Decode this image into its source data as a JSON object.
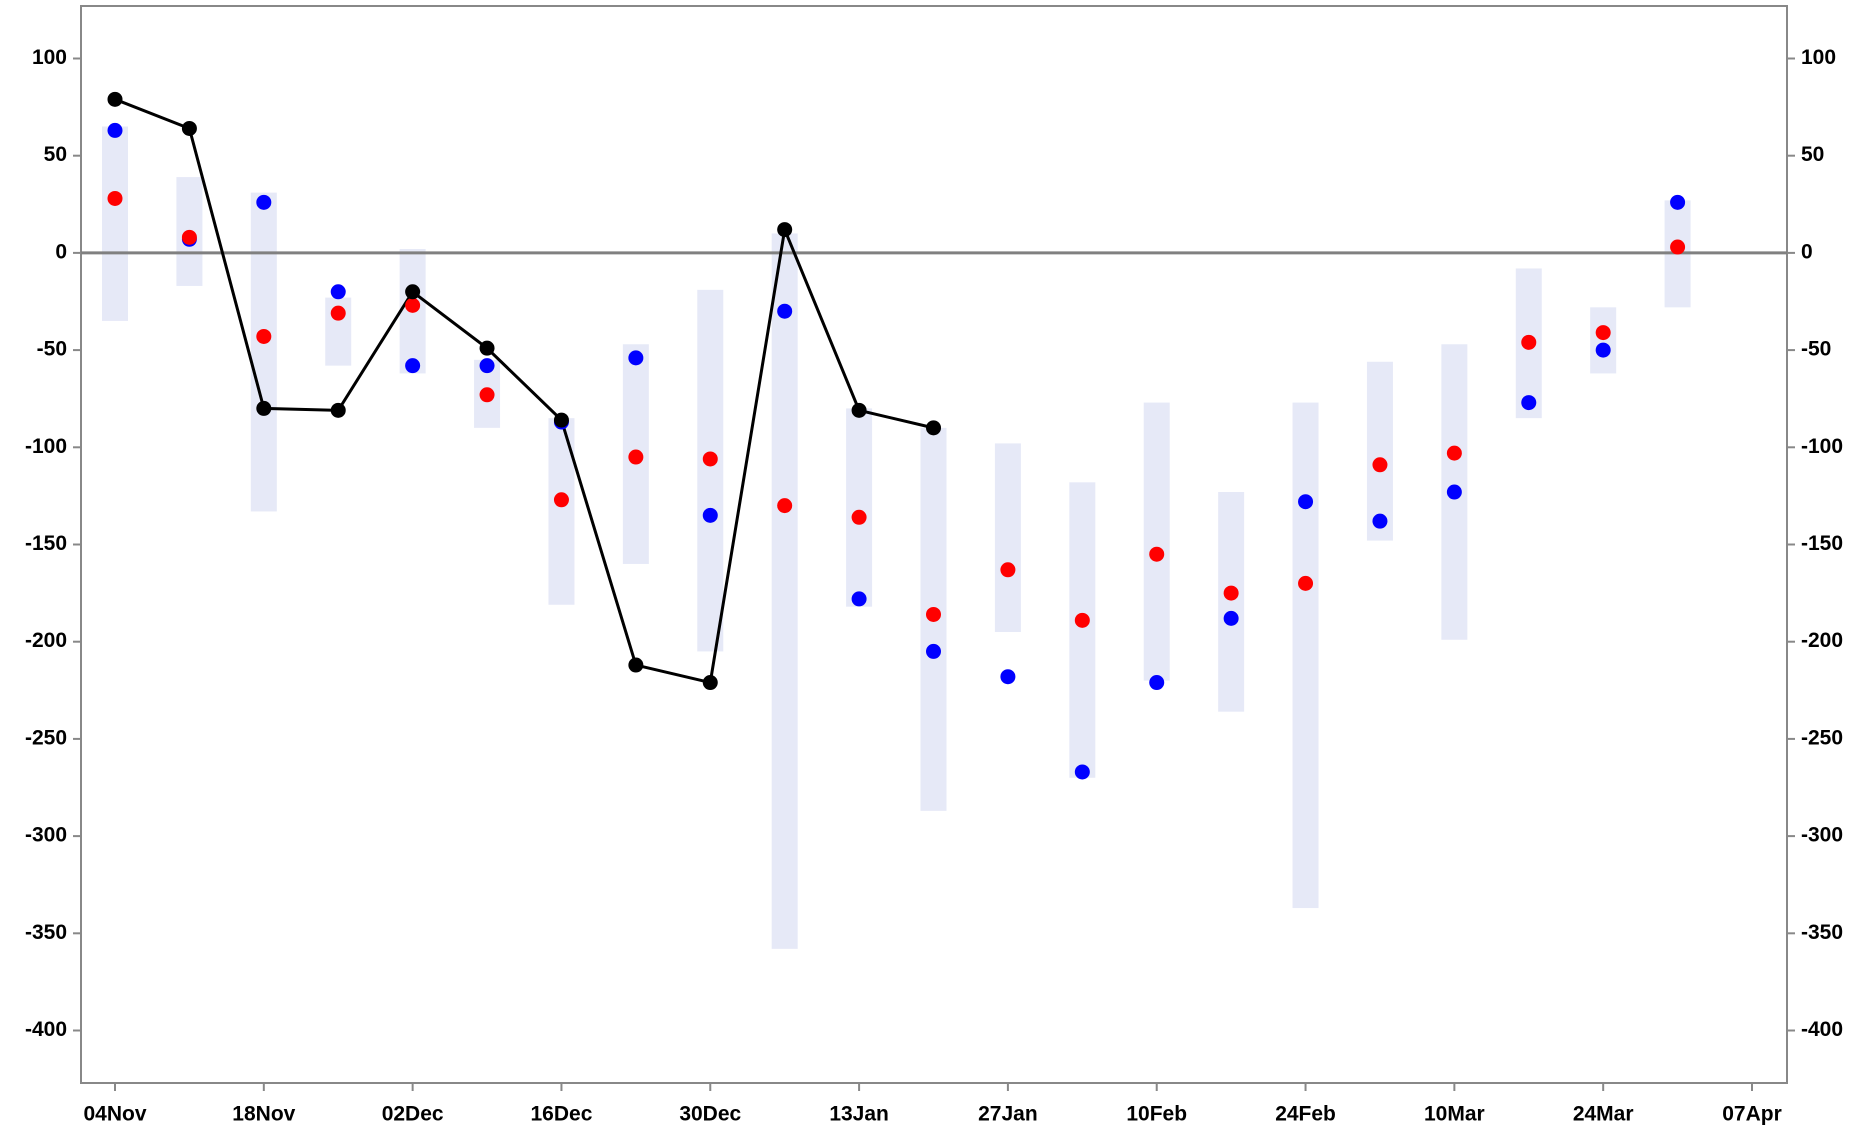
{
  "chart_data": {
    "type": "range-dot",
    "categories": [
      "04Nov",
      null,
      "18Nov",
      null,
      "02Dec",
      null,
      "16Dec",
      null,
      "30Dec",
      null,
      "13Jan",
      null,
      "27Jan",
      null,
      "10Feb",
      null,
      "24Feb",
      null,
      "10Mar",
      null,
      "24Mar",
      null,
      "07Apr"
    ],
    "ranges": {
      "color": "#e6e9f7",
      "low": [
        -35,
        -17,
        -133,
        -58,
        -62,
        -90,
        -181,
        -160,
        -205,
        -358,
        -182,
        -287,
        -195,
        -270,
        -220,
        -236,
        -337,
        -148,
        -199,
        -85,
        -62,
        -28,
        null
      ],
      "high": [
        65,
        39,
        31,
        -23,
        2,
        -55,
        -85,
        -47,
        -19,
        10,
        -80,
        -90,
        -98,
        -118,
        -77,
        -123,
        -77,
        -56,
        -47,
        -8,
        -28,
        27,
        null
      ]
    },
    "series": [
      {
        "color": "#0000ff",
        "values": [
          63,
          7,
          26,
          -20,
          -58,
          -58,
          -87,
          -54,
          -135,
          -30,
          -178,
          -205,
          -218,
          -267,
          -221,
          -188,
          -128,
          -138,
          -123,
          -77,
          -50,
          26,
          null
        ]
      },
      {
        "color": "#ff0000",
        "values": [
          28,
          8,
          -43,
          -31,
          -27,
          -73,
          -127,
          -105,
          -106,
          -130,
          -136,
          -186,
          -163,
          -189,
          -155,
          -175,
          -170,
          -109,
          -103,
          -46,
          -41,
          3,
          null
        ]
      }
    ],
    "line": {
      "color": "#000000",
      "values": [
        79,
        64,
        -80,
        -81,
        -20,
        -49,
        -86,
        -212,
        -221,
        12,
        -81,
        -90,
        null,
        null,
        null,
        null,
        null,
        null,
        null,
        null,
        null,
        null,
        null
      ]
    },
    "zero_line": true,
    "ylim": [
      -427,
      127
    ],
    "yticks": [
      -400,
      -350,
      -300,
      -250,
      -200,
      -150,
      -100,
      -50,
      0,
      50,
      100
    ],
    "y2lim": [
      -427,
      127
    ],
    "y2ticks": [
      -400,
      -350,
      -300,
      -250,
      -200,
      -150,
      -100,
      -50,
      0,
      50,
      100
    ]
  }
}
